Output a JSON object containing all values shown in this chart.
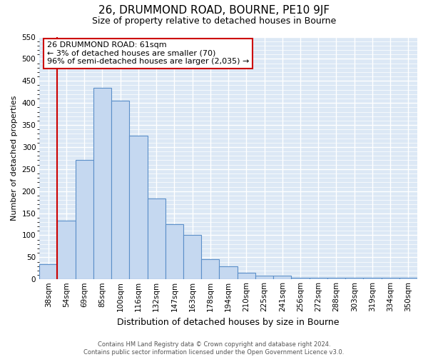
{
  "title": "26, DRUMMOND ROAD, BOURNE, PE10 9JF",
  "subtitle": "Size of property relative to detached houses in Bourne",
  "xlabel": "Distribution of detached houses by size in Bourne",
  "ylabel": "Number of detached properties",
  "bar_labels": [
    "38sqm",
    "54sqm",
    "69sqm",
    "85sqm",
    "100sqm",
    "116sqm",
    "132sqm",
    "147sqm",
    "163sqm",
    "178sqm",
    "194sqm",
    "210sqm",
    "225sqm",
    "241sqm",
    "256sqm",
    "272sqm",
    "288sqm",
    "303sqm",
    "319sqm",
    "334sqm",
    "350sqm"
  ],
  "bar_values": [
    35,
    133,
    270,
    435,
    405,
    325,
    183,
    125,
    101,
    46,
    29,
    15,
    8,
    9,
    4,
    4,
    4,
    4,
    4,
    4,
    4
  ],
  "bar_color": "#c5d8f0",
  "bar_edge_color": "#5b8fc9",
  "ylim": [
    0,
    550
  ],
  "yticks": [
    0,
    50,
    100,
    150,
    200,
    250,
    300,
    350,
    400,
    450,
    500,
    550
  ],
  "vline_color": "#cc0000",
  "vline_x_index": 1,
  "annotation_lines": [
    "26 DRUMMOND ROAD: 61sqm",
    "← 3% of detached houses are smaller (70)",
    "96% of semi-detached houses are larger (2,035) →"
  ],
  "annotation_box_facecolor": "#ffffff",
  "annotation_box_edgecolor": "#cc0000",
  "footer_lines": [
    "Contains HM Land Registry data © Crown copyright and database right 2024.",
    "Contains public sector information licensed under the Open Government Licence v3.0."
  ],
  "figure_bg": "#ffffff",
  "plot_bg": "#dce8f5",
  "grid_color": "#ffffff",
  "title_fontsize": 11,
  "subtitle_fontsize": 9,
  "xlabel_fontsize": 9,
  "ylabel_fontsize": 8,
  "tick_fontsize": 7.5,
  "footer_fontsize": 6,
  "annotation_fontsize": 8
}
